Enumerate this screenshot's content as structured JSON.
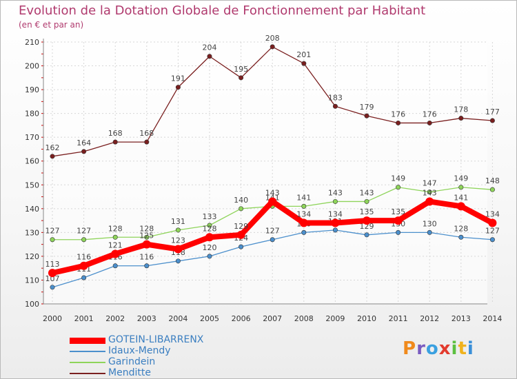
{
  "chart_data": {
    "type": "line",
    "title": "Evolution de la Dotation Globale de Fonctionnement par Habitant",
    "subtitle": "(en € et par an)",
    "categories": [
      "2000",
      "2001",
      "2002",
      "2003",
      "2004",
      "2005",
      "2006",
      "2007",
      "2008",
      "2009",
      "2010",
      "2011",
      "2012",
      "2013",
      "2014"
    ],
    "ylim": [
      100,
      210
    ],
    "yticks": [
      100,
      110,
      120,
      130,
      140,
      150,
      160,
      170,
      180,
      190,
      200,
      210
    ],
    "grid": true,
    "series": [
      {
        "name": "Menditte",
        "color": "#7a1f1f",
        "values": [
          162,
          164,
          168,
          168,
          191,
          204,
          195,
          208,
          201,
          183,
          179,
          176,
          176,
          178,
          177
        ]
      },
      {
        "name": "Garindein",
        "color": "#8ed45a",
        "values": [
          127,
          127,
          128,
          128,
          131,
          133,
          140,
          141,
          141,
          143,
          143,
          149,
          147,
          149,
          148
        ]
      },
      {
        "name": "Idaux-Mendy",
        "color": "#4b8fcc",
        "values": [
          107,
          111,
          116,
          116,
          118,
          120,
          124,
          127,
          130,
          131,
          129,
          130,
          130,
          128,
          127
        ]
      },
      {
        "name": "GOTEIN-LIBARRENX",
        "color": "#ff0000",
        "values": [
          113,
          116,
          121,
          125,
          123,
          128,
          129,
          143,
          134,
          134,
          135,
          135,
          143,
          141,
          134
        ]
      }
    ]
  },
  "legend": {
    "position": "bottom-left",
    "items": [
      {
        "label": "GOTEIN-LIBARRENX",
        "color": "#ff0000"
      },
      {
        "label": "Idaux-Mendy",
        "color": "#4b8fcc"
      },
      {
        "label": "Garindein",
        "color": "#8ed45a"
      },
      {
        "label": "Menditte",
        "color": "#7a1f1f"
      }
    ]
  },
  "logo": {
    "letters": [
      "P",
      "r",
      "o",
      "x",
      "i",
      "t",
      "i"
    ],
    "colors": [
      "#f08a1c",
      "#7a5cc0",
      "#3aa0e0",
      "#e23b2e",
      "#5cc040",
      "#f0b21c",
      "#3a8fd8"
    ]
  }
}
